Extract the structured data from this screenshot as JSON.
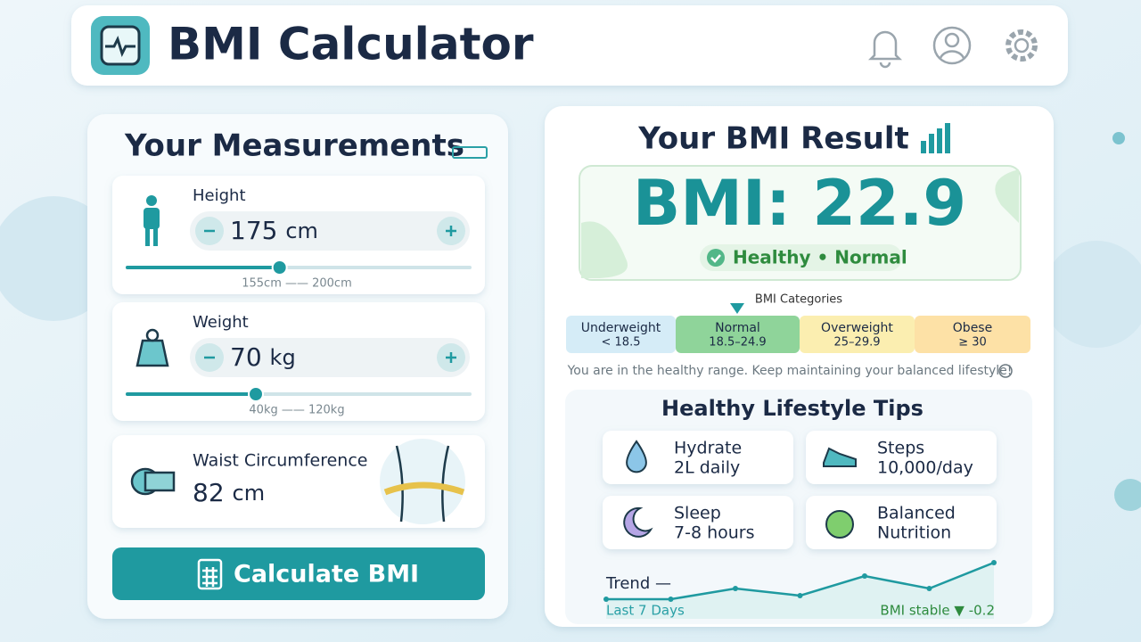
{
  "header": {
    "title": "BMI Calculator"
  },
  "measurements": {
    "title": "Your Measurements",
    "height": {
      "label": "Height",
      "value": 175,
      "unit": "cm",
      "min": 155,
      "max": 200,
      "range_label": "155cm —— 200cm"
    },
    "weight": {
      "label": "Weight",
      "value": 70,
      "unit": "kg",
      "min": 40,
      "max": 120,
      "range_label": "40kg —— 120kg"
    },
    "waist": {
      "label": "Waist Circumference",
      "value": 82,
      "unit": "cm"
    },
    "button": "Calculate BMI"
  },
  "result": {
    "title": "Your BMI Result",
    "bmi": "BMI: 22.9",
    "status": "Healthy • Normal",
    "categories_title": "BMI Categories",
    "categories": [
      {
        "name": "Underweight",
        "range": "< 18.5"
      },
      {
        "name": "Normal",
        "range": "18.5–24.9"
      },
      {
        "name": "Overweight",
        "range": "25–29.9"
      },
      {
        "name": "Obese",
        "range": "≥ 30"
      }
    ],
    "message": "You are in the healthy range. Keep maintaining your balanced lifestyle!"
  },
  "tips": {
    "title": "Healthy Lifestyle Tips",
    "items": [
      {
        "line1": "Hydrate",
        "line2": "2L daily"
      },
      {
        "line1": "Steps",
        "line2": "10,000/day"
      },
      {
        "line1": "Sleep",
        "line2": "7-8 hours"
      },
      {
        "line1": "Balanced",
        "line2": "Nutrition"
      }
    ]
  },
  "trend": {
    "label": "Trend —",
    "period": "Last 7 Days",
    "summary": "BMI stable ▼ -0.2",
    "values": [
      0,
      0,
      1.2,
      0.4,
      2.6,
      1.2,
      4.1
    ]
  }
}
